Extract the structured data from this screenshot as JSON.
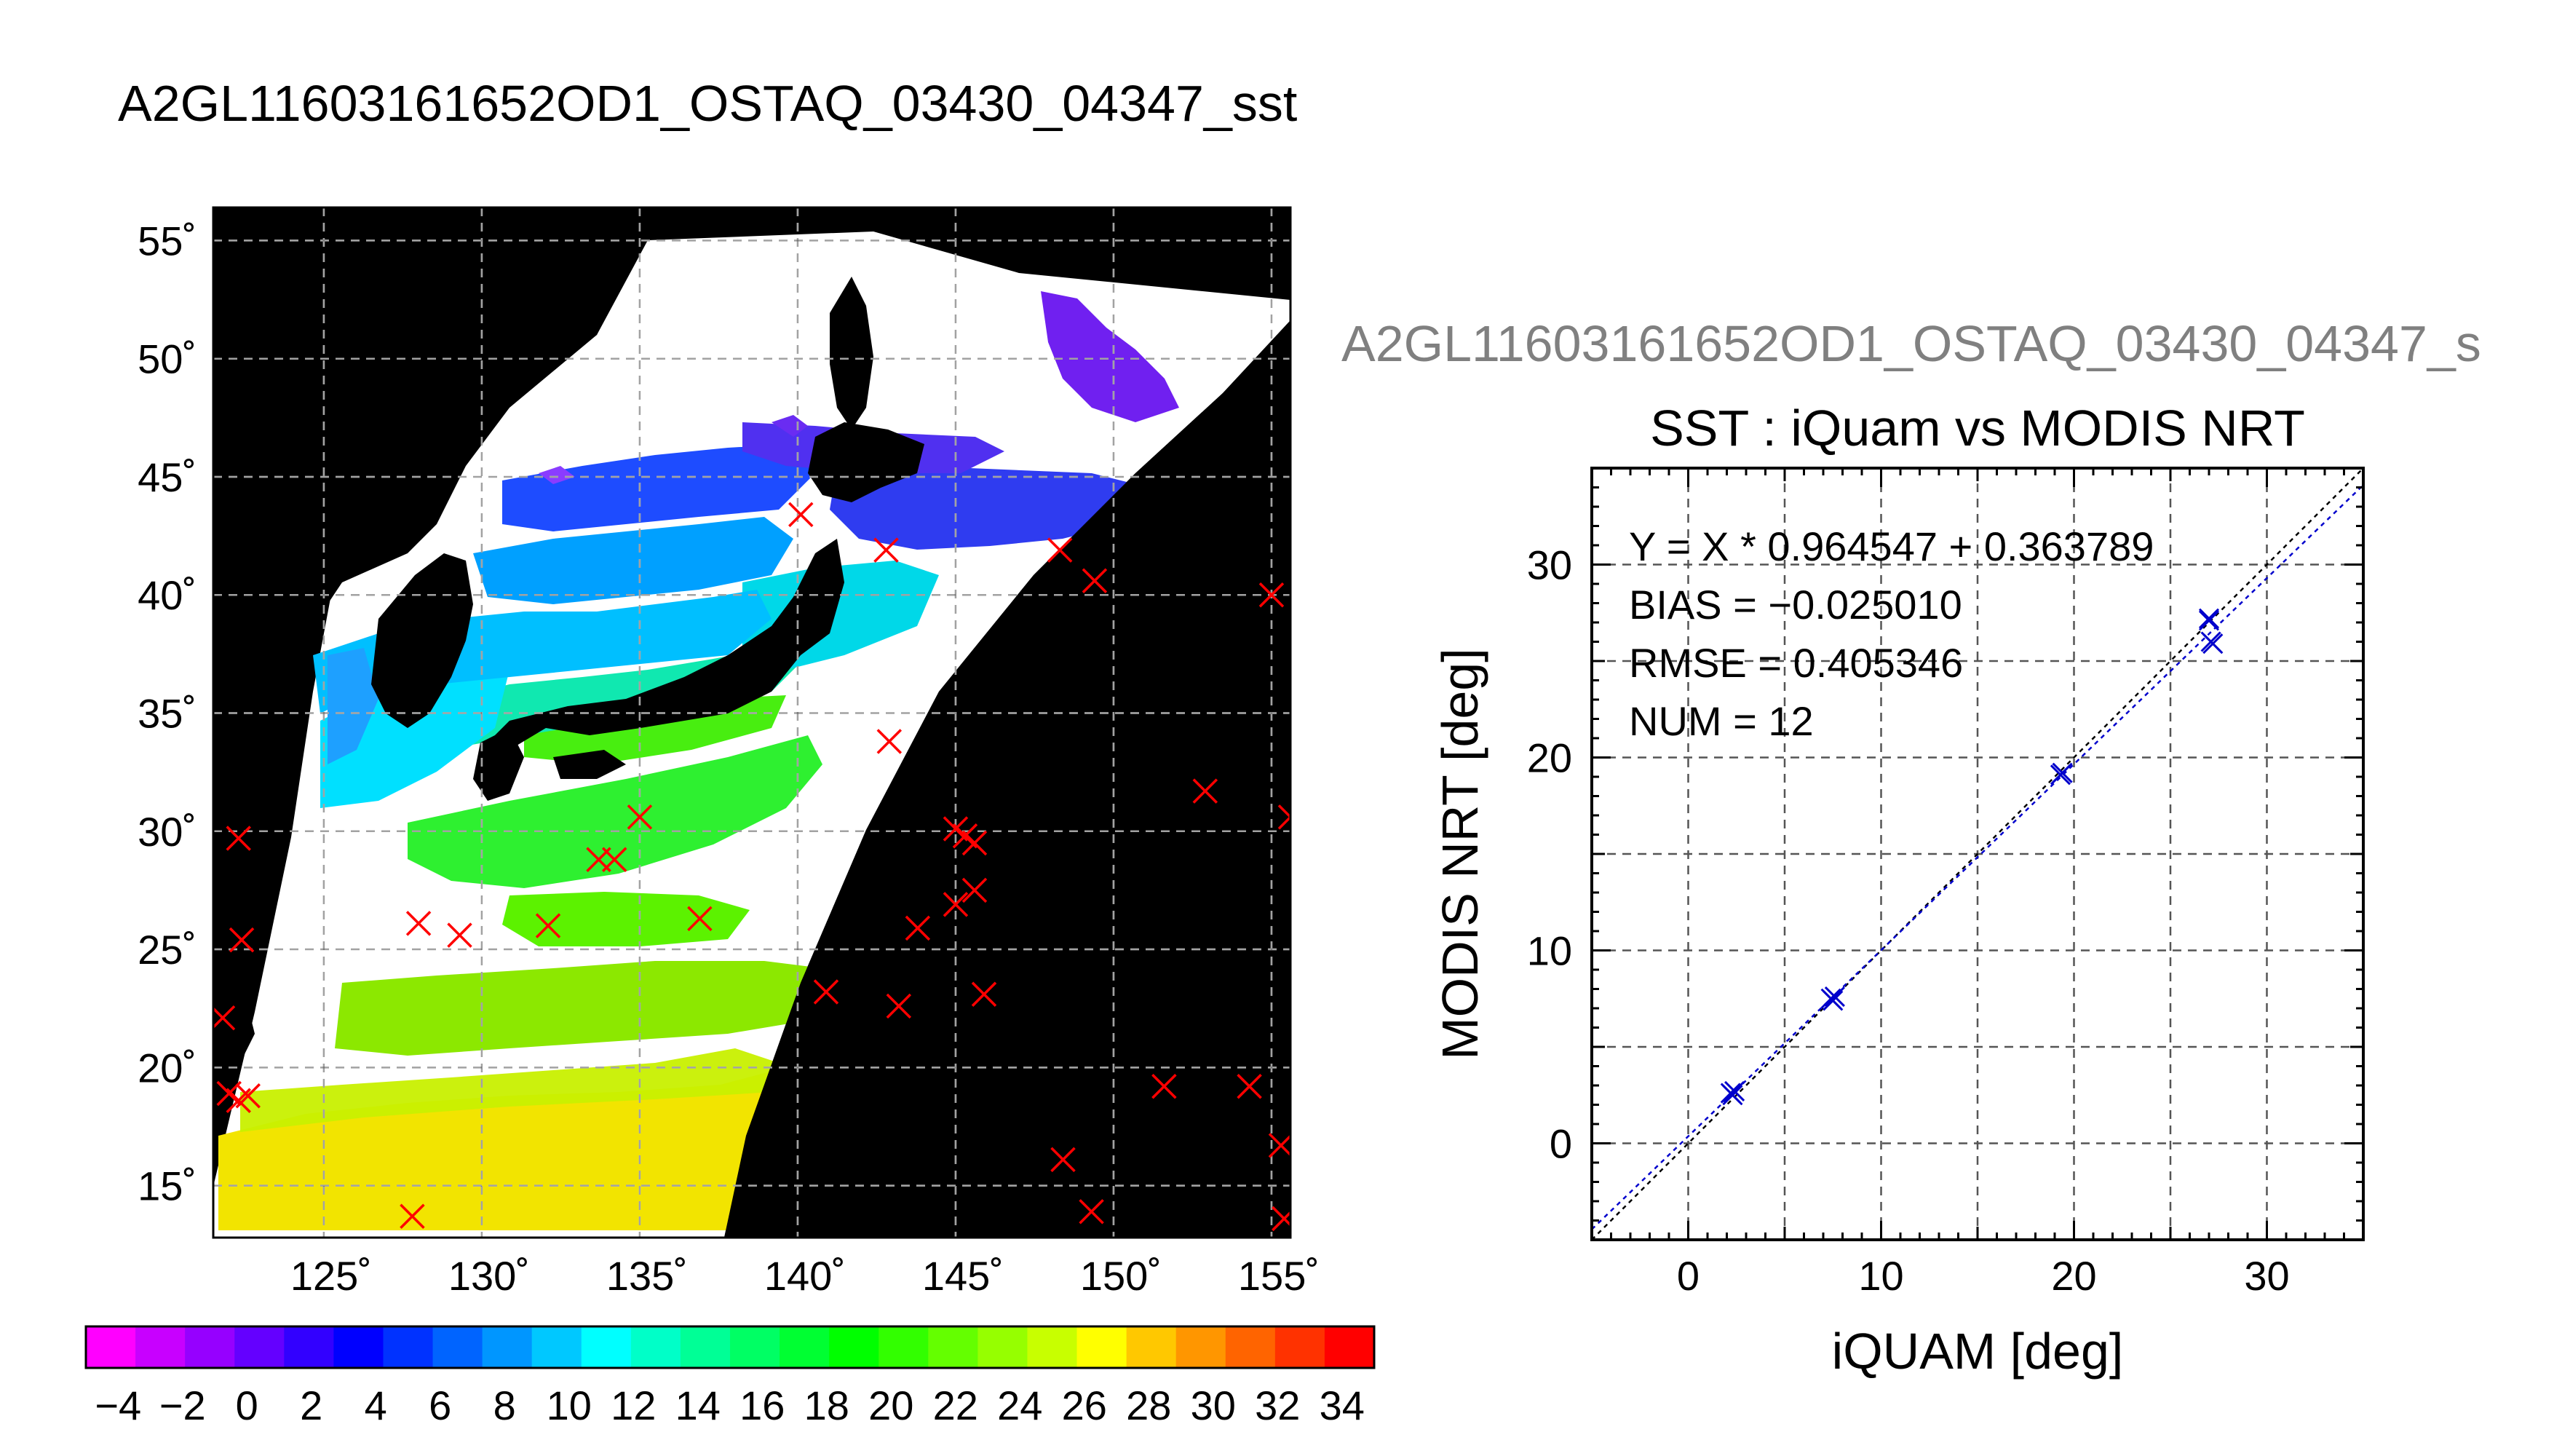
{
  "title": "A2GL11603161652OD1_OSTAQ_03430_04347_sst",
  "map": {
    "lat_ticks": [
      55,
      50,
      45,
      40,
      35,
      30,
      25,
      20,
      15
    ],
    "lat_tick_labels": [
      "55˚",
      "50˚",
      "45˚",
      "40˚",
      "35˚",
      "30˚",
      "25˚",
      "20˚",
      "15˚"
    ],
    "lon_ticks": [
      125,
      130,
      135,
      140,
      145,
      150,
      155
    ],
    "lon_tick_labels": [
      "125˚",
      "130˚",
      "135˚",
      "140˚",
      "145˚",
      "150˚",
      "155˚"
    ],
    "lon_range": [
      121.5,
      155.6
    ],
    "lat_range": [
      12.8,
      56.4
    ],
    "marker_color": "#ff0000",
    "markers": [
      [
        122.3,
        29.7
      ],
      [
        122.4,
        25.4
      ],
      [
        121.8,
        22.1
      ],
      [
        122.0,
        18.9
      ],
      [
        122.3,
        18.6
      ],
      [
        122.6,
        18.8
      ],
      [
        128.0,
        26.1
      ],
      [
        129.3,
        25.6
      ],
      [
        132.1,
        26.0
      ],
      [
        133.7,
        28.8
      ],
      [
        134.2,
        28.8
      ],
      [
        135.0,
        30.6
      ],
      [
        136.9,
        26.3
      ],
      [
        140.1,
        43.4
      ],
      [
        142.8,
        41.9
      ],
      [
        142.9,
        33.8
      ],
      [
        140.9,
        23.2
      ],
      [
        143.2,
        22.6
      ],
      [
        143.8,
        25.9
      ],
      [
        145.0,
        30.1
      ],
      [
        145.3,
        29.8
      ],
      [
        145.6,
        29.5
      ],
      [
        145.0,
        26.9
      ],
      [
        145.6,
        27.5
      ],
      [
        145.9,
        23.1
      ],
      [
        148.3,
        41.9
      ],
      [
        149.4,
        40.6
      ],
      [
        148.4,
        16.1
      ],
      [
        149.3,
        13.9
      ],
      [
        151.6,
        19.2
      ],
      [
        152.9,
        31.7
      ],
      [
        154.3,
        19.2
      ],
      [
        155.0,
        40.0
      ],
      [
        155.3,
        16.7
      ],
      [
        155.4,
        13.6
      ],
      [
        155.6,
        30.6
      ],
      [
        127.8,
        13.7
      ]
    ]
  },
  "colorbar": {
    "min": -5,
    "max": 35,
    "tick_labels": [
      "−4",
      "−2",
      "0",
      "2",
      "4",
      "6",
      "8",
      "10",
      "12",
      "14",
      "16",
      "18",
      "20",
      "22",
      "24",
      "26",
      "28",
      "30",
      "32",
      "34"
    ],
    "tick_values": [
      -4,
      -2,
      0,
      2,
      4,
      6,
      8,
      10,
      12,
      14,
      16,
      18,
      20,
      22,
      24,
      26,
      28,
      30,
      32,
      34
    ],
    "colors": [
      "#ff00ff",
      "#c800ff",
      "#9600ff",
      "#6400ff",
      "#3200ff",
      "#0000ff",
      "#0032ff",
      "#0064ff",
      "#0096ff",
      "#00c8ff",
      "#00ffff",
      "#00ffc8",
      "#00ff96",
      "#00ff64",
      "#00ff32",
      "#00ff00",
      "#32ff00",
      "#64ff00",
      "#96ff00",
      "#c8ff00",
      "#ffff00",
      "#ffc800",
      "#ff9600",
      "#ff6400",
      "#ff3200",
      "#ff0000"
    ]
  },
  "scatter_header": "A2GL11603161652OD1_OSTAQ_03430_04347_s",
  "chart_data": {
    "type": "scatter",
    "title": "SST : iQuam vs MODIS NRT",
    "xlabel": "iQUAM [deg]",
    "ylabel": "MODIS NRT [deg]",
    "xlim": [
      -5,
      35
    ],
    "ylim": [
      -5,
      35
    ],
    "x_ticks": [
      0,
      10,
      20,
      30
    ],
    "y_ticks": [
      0,
      10,
      20,
      30
    ],
    "grid": true,
    "marker_color": "#0000cc",
    "fit_color": "#0000cc",
    "x": [
      2.2,
      2.4,
      7.4,
      7.6,
      19.3,
      19.4,
      27.0,
      27.1,
      27.0,
      27.2,
      2.3,
      7.5
    ],
    "y": [
      2.6,
      2.7,
      7.5,
      7.6,
      19.1,
      19.2,
      27.1,
      26.0,
      27.2,
      25.9,
      2.5,
      7.4
    ],
    "fit": {
      "slope": 0.964547,
      "intercept": 0.363789
    },
    "stats": [
      "Y = X * 0.964547 + 0.363789",
      "BIAS = −0.025010",
      "RMSE = 0.405346",
      "NUM = 12"
    ]
  }
}
